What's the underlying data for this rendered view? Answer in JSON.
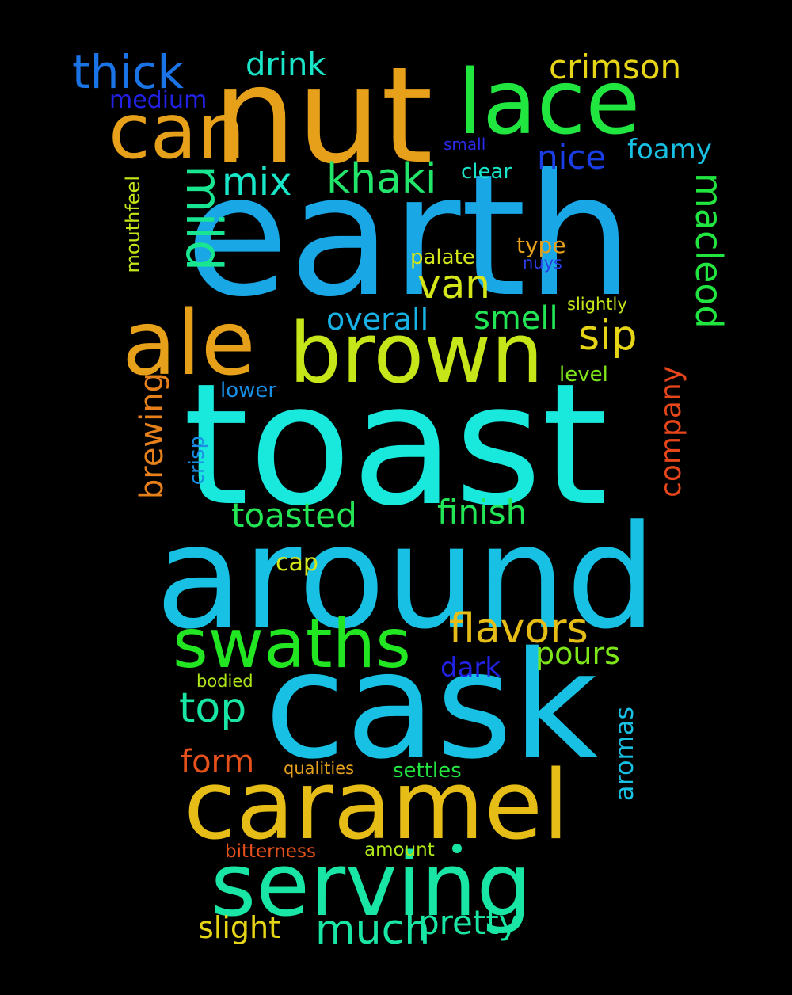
{
  "words": [
    {
      "text": "earth",
      "color": "#1aa7e6"
    },
    {
      "text": "toast",
      "color": "#19e8dc"
    },
    {
      "text": "around",
      "color": "#18c1e3"
    },
    {
      "text": "cask",
      "color": "#18c1e3"
    },
    {
      "text": "nut",
      "color": "#e6a01a"
    },
    {
      "text": "caramel",
      "color": "#e6bd17"
    },
    {
      "text": "serving",
      "color": "#19e6a4"
    },
    {
      "text": "brown",
      "color": "#c6e619"
    },
    {
      "text": "ale",
      "color": "#e6a01a"
    },
    {
      "text": "lace",
      "color": "#22e640"
    },
    {
      "text": "can",
      "color": "#e6a01a"
    },
    {
      "text": "swaths",
      "color": "#22e622"
    },
    {
      "text": "thick",
      "color": "#1a74e6"
    },
    {
      "text": "mild",
      "color": "#19e691"
    },
    {
      "text": "flavors",
      "color": "#e6bd17"
    },
    {
      "text": "much",
      "color": "#19e6a4"
    },
    {
      "text": "pretty",
      "color": "#19e6a4"
    },
    {
      "text": "khaki",
      "color": "#22e66a"
    },
    {
      "text": "van",
      "color": "#d4e619"
    },
    {
      "text": "macleod",
      "color": "#22e640"
    },
    {
      "text": "sip",
      "color": "#e6d417"
    },
    {
      "text": "finish",
      "color": "#22e655"
    },
    {
      "text": "toasted",
      "color": "#22e655"
    },
    {
      "text": "top",
      "color": "#19e6a4"
    },
    {
      "text": "crimson",
      "color": "#e6d417"
    },
    {
      "text": "drink",
      "color": "#19e6c8"
    },
    {
      "text": "mix",
      "color": "#19e6c8"
    },
    {
      "text": "smell",
      "color": "#22e655"
    },
    {
      "text": "overall",
      "color": "#18b3e6"
    },
    {
      "text": "pours",
      "color": "#7ce619"
    },
    {
      "text": "nice",
      "color": "#1a3ee6"
    },
    {
      "text": "foamy",
      "color": "#18c1e3"
    },
    {
      "text": "company",
      "color": "#e6461a"
    },
    {
      "text": "brewing",
      "color": "#e6801a"
    },
    {
      "text": "form",
      "color": "#e6501a"
    },
    {
      "text": "slight",
      "color": "#e6d417"
    },
    {
      "text": "medium",
      "color": "#2222e6"
    },
    {
      "text": "dark",
      "color": "#2222e6"
    },
    {
      "text": "aromas",
      "color": "#18c1e3"
    },
    {
      "text": "cap",
      "color": "#d4e619"
    },
    {
      "text": "palate",
      "color": "#d4e619"
    },
    {
      "text": "type",
      "color": "#e6a01a"
    },
    {
      "text": "clear",
      "color": "#19e6c8"
    },
    {
      "text": "crisp",
      "color": "#1a8fe6"
    },
    {
      "text": "lower",
      "color": "#1a8fe6"
    },
    {
      "text": "level",
      "color": "#7ce619"
    },
    {
      "text": "settles",
      "color": "#22e640"
    },
    {
      "text": "mouthfeel",
      "color": "#c6e619"
    },
    {
      "text": "bitterness",
      "color": "#e6501a"
    },
    {
      "text": "amount",
      "color": "#aee619"
    },
    {
      "text": "qualities",
      "color": "#e6a01a"
    },
    {
      "text": "bodied",
      "color": "#aee619"
    },
    {
      "text": "slightly",
      "color": "#c6e619"
    },
    {
      "text": "small",
      "color": "#2a2ae6"
    },
    {
      "text": "nuys",
      "color": "#2a3ee6"
    }
  ],
  "dot_color": "#19e6a4"
}
